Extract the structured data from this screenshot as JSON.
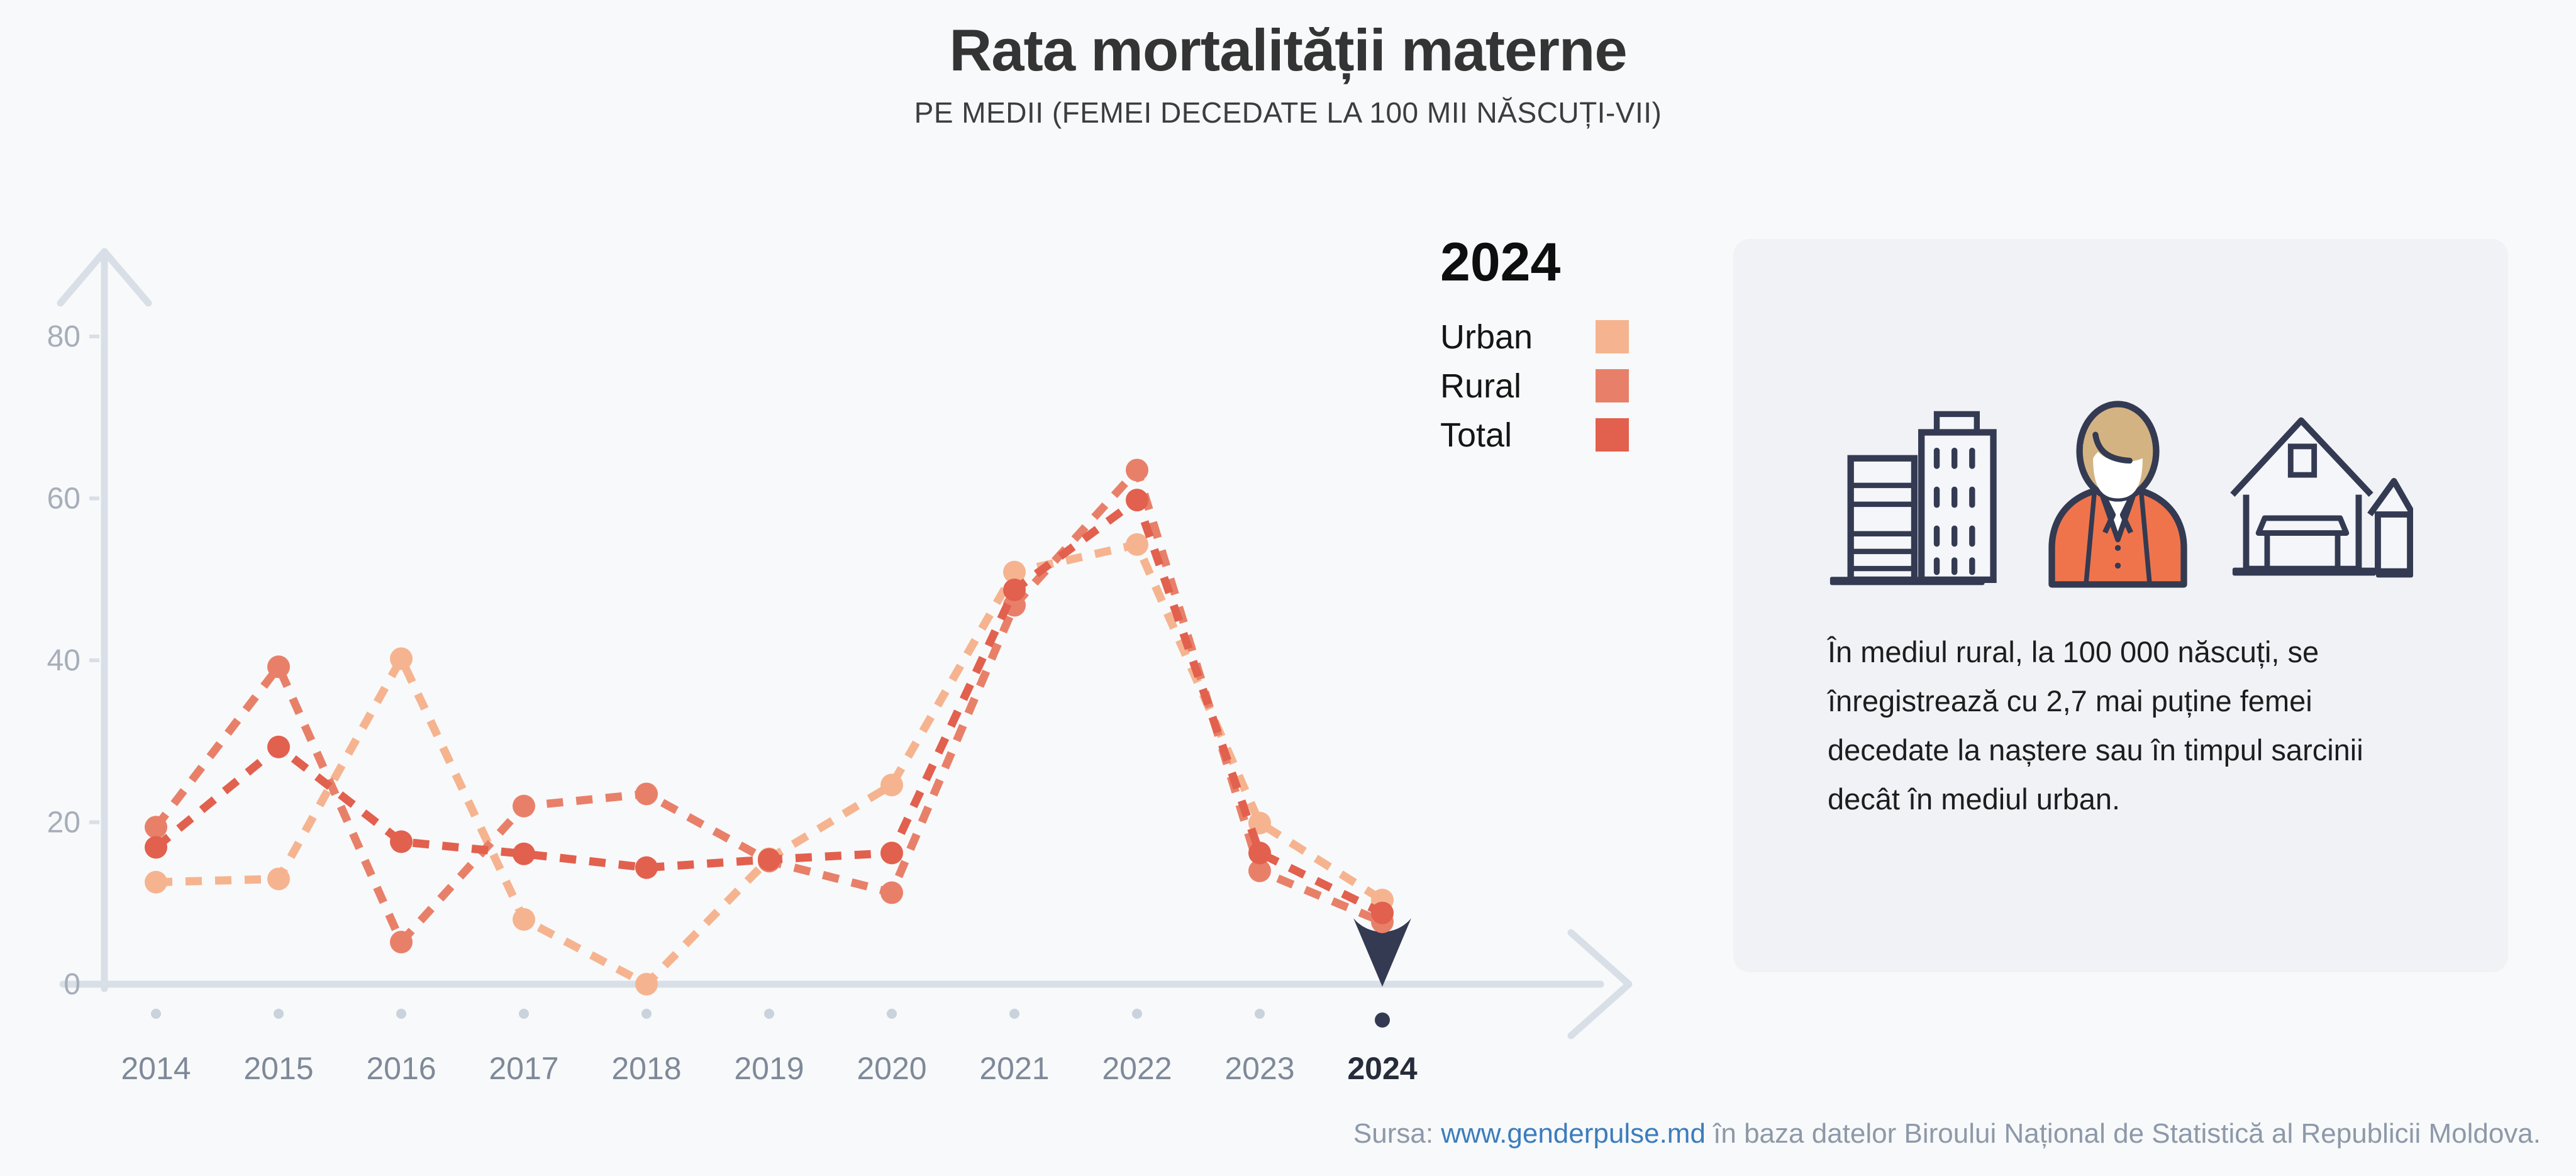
{
  "title": "Rata mortalității materne",
  "subtitle": "PE MEDII (FEMEI DECEDATE LA 100 MII NĂSCUȚI-VII)",
  "legend": {
    "selected_year": "2024",
    "items": [
      {
        "label": "Urban",
        "color": "#F5B48F"
      },
      {
        "label": "Rural",
        "color": "#E88069"
      },
      {
        "label": "Total",
        "color": "#E2604E"
      }
    ]
  },
  "chart_data": {
    "type": "line",
    "title": "",
    "xlabel": "",
    "ylabel": "",
    "x": [
      2014,
      2015,
      2016,
      2017,
      2018,
      2019,
      2020,
      2021,
      2022,
      2023,
      2024
    ],
    "series": [
      {
        "name": "Urban",
        "color": "#F5B48F",
        "values": [
          12.6,
          13.0,
          40.2,
          8.0,
          0.0,
          15.5,
          24.6,
          50.9,
          54.3,
          19.9,
          10.4
        ]
      },
      {
        "name": "Rural",
        "color": "#E88069",
        "values": [
          19.4,
          39.2,
          5.2,
          22.0,
          23.5,
          15.2,
          11.3,
          46.8,
          63.5,
          14.0,
          7.7
        ]
      },
      {
        "name": "Total",
        "color": "#E2604E",
        "values": [
          16.9,
          29.3,
          17.6,
          16.1,
          14.4,
          15.4,
          16.2,
          48.7,
          59.8,
          16.2,
          8.8
        ]
      }
    ],
    "ylim": [
      0,
      80
    ],
    "yticks": [
      0,
      20,
      40,
      60,
      80
    ],
    "grid": false,
    "line_style": "dashed",
    "selected_x": 2024,
    "legend_position": "top-right"
  },
  "infocard": {
    "text": "În mediul rural, la 100 000 născuți, se înregistrează cu 2,7 mai puține femei decedate la naștere sau în timpul sarcinii decât în mediul urban.",
    "icons": [
      "city-buildings-icon",
      "woman-icon",
      "houses-icon"
    ]
  },
  "footer": {
    "prefix": "Sursa: ",
    "link": "www.genderpulse.md",
    "suffix": " în baza datelor Biroului Național de Statistică al Republicii Moldova."
  },
  "colors": {
    "background": "#F8F9FA",
    "card_background": "#F0F2F6",
    "axis": "#D9DFE7",
    "tick_text": "#A6AEBB",
    "year_text": "#7E8999",
    "year_active": "#262C3A",
    "slider_dot": "#C9D2DD",
    "navy": "#333A52",
    "hair": "#D4B383",
    "jacket": "#F0744B",
    "icon_fill": "#F5F6F9",
    "link": "#3B7DBD"
  }
}
